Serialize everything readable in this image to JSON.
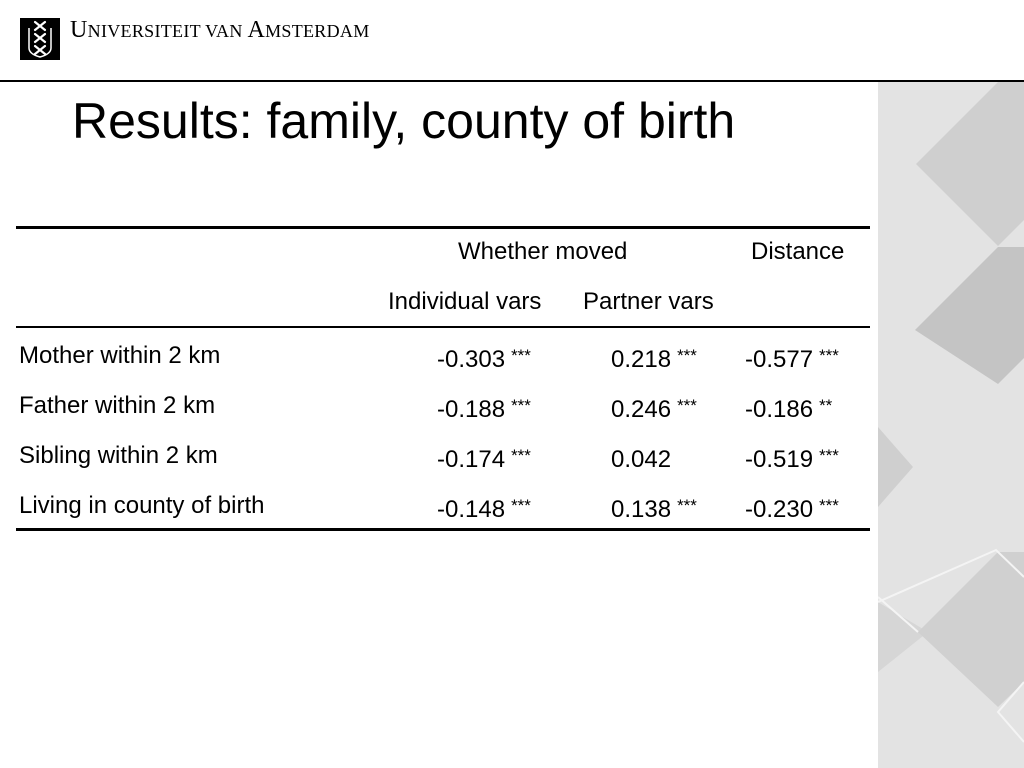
{
  "header": {
    "logo_icon": "three-crosses-shield-icon",
    "university_name_parts": [
      "U",
      "NIVERSITEIT VAN ",
      "A",
      "MSTERDAM"
    ]
  },
  "slide": {
    "title": "Results: family, county of birth"
  },
  "table": {
    "group_header": "Whether moved",
    "distance_header": "Distance",
    "sub_headers": [
      "Individual vars",
      "Partner vars"
    ],
    "rows": [
      {
        "label": "Mother within 2 km",
        "c1": "-0.303",
        "c1_sig": "***",
        "c2": "0.218",
        "c2_sig": "***",
        "c3": "-0.577",
        "c3_sig": "***"
      },
      {
        "label": "Father within 2 km",
        "c1": "-0.188",
        "c1_sig": "***",
        "c2": "0.246",
        "c2_sig": "***",
        "c3": "-0.186",
        "c3_sig": "**"
      },
      {
        "label": "Sibling within 2 km",
        "c1": "-0.174",
        "c1_sig": "***",
        "c2": "0.042",
        "c2_sig": "",
        "c3": "-0.519",
        "c3_sig": "***"
      },
      {
        "label": "Living in county of birth",
        "c1": "-0.148",
        "c1_sig": "***",
        "c2": "0.138",
        "c2_sig": "***",
        "c3": "-0.230",
        "c3_sig": "***"
      }
    ]
  },
  "colors": {
    "decor_light": "#e3e3e3",
    "decor_mid": "#cfcfcf",
    "decor_dark": "#bdbdbd"
  }
}
